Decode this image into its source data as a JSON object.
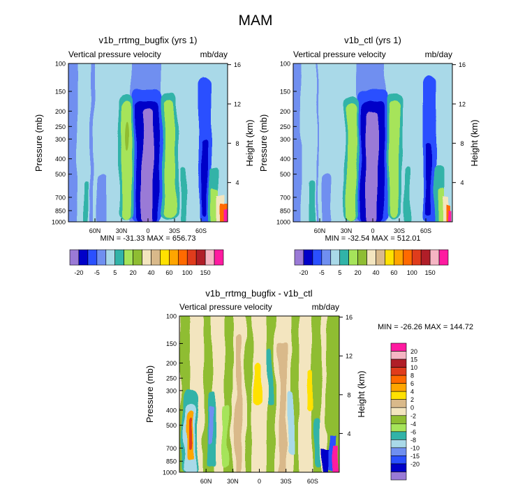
{
  "main_title": "MAM",
  "colors": {
    "panel": [
      "#9a7ad6",
      "#0000c8",
      "#2a50ff",
      "#6f8ff0",
      "#a9d9e8",
      "#31b3a8",
      "#a6e45a",
      "#8fbd32",
      "#f3e5bf",
      "#d9b98a",
      "#ffe100",
      "#ffa500",
      "#ff6a00",
      "#e03c1c",
      "#b01e28",
      "#f5b5c3",
      "#ff1aa0"
    ],
    "diff": [
      "#9a7ad6",
      "#0000c8",
      "#2a50ff",
      "#6f8ff0",
      "#a9d9e8",
      "#31b3a8",
      "#a6e45a",
      "#8fbd32",
      "#f3e5bf",
      "#d9b98a",
      "#ffe100",
      "#ffa500",
      "#ff6a00",
      "#e03c1c",
      "#b01e28",
      "#f5b5c3",
      "#ff1aa0"
    ]
  },
  "chart_data": [
    {
      "type": "heatmap",
      "title": "v1b_rrtmg_bugfix (yrs 1)",
      "left_subtitle": "Vertical pressure velocity",
      "right_subtitle": "mb/day",
      "ylabel": "Pressure (mb)",
      "right_ylabel": "Height (km)",
      "y_ticks": [
        "100",
        "150",
        "200",
        "250",
        "300",
        "400",
        "500",
        "700",
        "850",
        "1000"
      ],
      "x_ticks": [
        "60N",
        "30N",
        "0",
        "30S",
        "60S"
      ],
      "height_ticks": [
        "16",
        "12",
        "8",
        "4"
      ],
      "stats": "MIN = -31.33  MAX = 656.73",
      "levels": [
        "-20",
        "-5",
        "5",
        "20",
        "40",
        "60",
        "100",
        "150"
      ],
      "min": -31.33,
      "max": 656.73
    },
    {
      "type": "heatmap",
      "title": "v1b_ctl (yrs 1)",
      "left_subtitle": "Vertical pressure velocity",
      "right_subtitle": "mb/day",
      "ylabel": "Pressure (mb)",
      "right_ylabel": "Height (km)",
      "y_ticks": [
        "100",
        "150",
        "200",
        "250",
        "300",
        "400",
        "500",
        "700",
        "850",
        "1000"
      ],
      "x_ticks": [
        "60N",
        "30N",
        "0",
        "30S",
        "60S"
      ],
      "height_ticks": [
        "16",
        "12",
        "8",
        "4"
      ],
      "stats": "MIN = -32.54  MAX = 512.01",
      "levels": [
        "-20",
        "-5",
        "5",
        "20",
        "40",
        "60",
        "100",
        "150"
      ],
      "min": -32.54,
      "max": 512.01
    },
    {
      "type": "heatmap",
      "title": "v1b_rrtmg_bugfix - v1b_ctl",
      "left_subtitle": "Vertical pressure velocity",
      "right_subtitle": "mb/day",
      "ylabel": "Pressure (mb)",
      "right_ylabel": "Height (km)",
      "y_ticks": [
        "100",
        "150",
        "200",
        "250",
        "300",
        "400",
        "500",
        "700",
        "850",
        "1000"
      ],
      "x_ticks": [
        "60N",
        "30N",
        "0",
        "30S",
        "60S"
      ],
      "height_ticks": [
        "16",
        "12",
        "8",
        "4"
      ],
      "stats": "MIN = -26.26  MAX = 144.72",
      "levels": [
        "20",
        "15",
        "10",
        "8",
        "6",
        "4",
        "2",
        "0",
        "-2",
        "-4",
        "-6",
        "-8",
        "-10",
        "-15",
        "-20"
      ],
      "min": -26.26,
      "max": 144.72
    }
  ]
}
